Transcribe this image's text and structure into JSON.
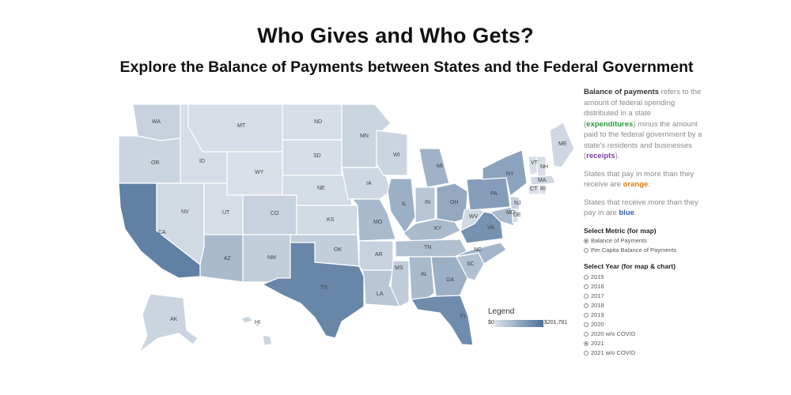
{
  "header": {
    "title": "Who Gives and Who Gets?",
    "subtitle": "Explore the Balance of Payments between States and the Federal Government"
  },
  "colors": {
    "low": "#dde3ea",
    "high": "#4a6f98"
  },
  "legend": {
    "title": "Legend",
    "min_label": "$0",
    "max_label": "$201,781"
  },
  "states": [
    {
      "abbr": "WA",
      "v": 0.15
    },
    {
      "abbr": "OR",
      "v": 0.12
    },
    {
      "abbr": "CA",
      "v": 0.85
    },
    {
      "abbr": "NV",
      "v": 0.08
    },
    {
      "abbr": "ID",
      "v": 0.05
    },
    {
      "abbr": "MT",
      "v": 0.05
    },
    {
      "abbr": "WY",
      "v": 0.03
    },
    {
      "abbr": "UT",
      "v": 0.05
    },
    {
      "abbr": "AZ",
      "v": 0.35
    },
    {
      "abbr": "CO",
      "v": 0.15
    },
    {
      "abbr": "NM",
      "v": 0.18
    },
    {
      "abbr": "ND",
      "v": 0.04
    },
    {
      "abbr": "SD",
      "v": 0.04
    },
    {
      "abbr": "NE",
      "v": 0.06
    },
    {
      "abbr": "KS",
      "v": 0.08
    },
    {
      "abbr": "OK",
      "v": 0.18
    },
    {
      "abbr": "TX",
      "v": 0.8
    },
    {
      "abbr": "MN",
      "v": 0.12
    },
    {
      "abbr": "IA",
      "v": 0.1
    },
    {
      "abbr": "MO",
      "v": 0.35
    },
    {
      "abbr": "AR",
      "v": 0.15
    },
    {
      "abbr": "LA",
      "v": 0.25
    },
    {
      "abbr": "WI",
      "v": 0.12
    },
    {
      "abbr": "IL",
      "v": 0.45
    },
    {
      "abbr": "MS",
      "v": 0.2
    },
    {
      "abbr": "MI",
      "v": 0.42
    },
    {
      "abbr": "IN",
      "v": 0.25
    },
    {
      "abbr": "KY",
      "v": 0.35
    },
    {
      "abbr": "TN",
      "v": 0.3
    },
    {
      "abbr": "AL",
      "v": 0.35
    },
    {
      "abbr": "OH",
      "v": 0.5
    },
    {
      "abbr": "GA",
      "v": 0.45
    },
    {
      "abbr": "FL",
      "v": 0.75
    },
    {
      "abbr": "SC",
      "v": 0.3
    },
    {
      "abbr": "NC",
      "v": 0.4
    },
    {
      "abbr": "VA",
      "v": 0.7
    },
    {
      "abbr": "WV",
      "v": 0.08
    },
    {
      "abbr": "PA",
      "v": 0.6
    },
    {
      "abbr": "NY",
      "v": 0.55
    },
    {
      "abbr": "ME",
      "v": 0.1
    },
    {
      "abbr": "VT",
      "v": 0.05
    },
    {
      "abbr": "NH",
      "v": 0.05
    },
    {
      "abbr": "MA",
      "v": 0.1
    },
    {
      "abbr": "CT",
      "v": 0.05
    },
    {
      "abbr": "RI",
      "v": 0.04
    },
    {
      "abbr": "NJ",
      "v": 0.15
    },
    {
      "abbr": "MD",
      "v": 0.35
    },
    {
      "abbr": "DE",
      "v": 0.05
    },
    {
      "abbr": "AK",
      "v": 0.12
    },
    {
      "abbr": "HI",
      "v": 0.12
    }
  ],
  "sidebar": {
    "p1_bold": "Balance of payments",
    "p1_a": " refers to the amount of federal spending distributed in a state (",
    "p1_green": "expenditures",
    "p1_b": ") minus the amount paid to the federal government by a state's residents and businesses (",
    "p1_purple": "receipts",
    "p1_c": ").",
    "p2_a": "States that pay in more than they receive are ",
    "p2_orange": "orange",
    "p2_b": ".",
    "p3_a": "States that receive more than they pay in are ",
    "p3_blue": "blue",
    "p3_b": ".",
    "metric_title": "Select Metric (for map)",
    "metric_options": [
      "Balance of Payments",
      "Per Capita Balance of Payments"
    ],
    "metric_selected": 0,
    "year_title": "Select Year (for map & chart)",
    "year_options": [
      "2015",
      "2016",
      "2017",
      "2018",
      "2019",
      "2020",
      "2020 w/o COVID",
      "2021",
      "2021 w/o COVID"
    ],
    "year_selected": 7
  }
}
